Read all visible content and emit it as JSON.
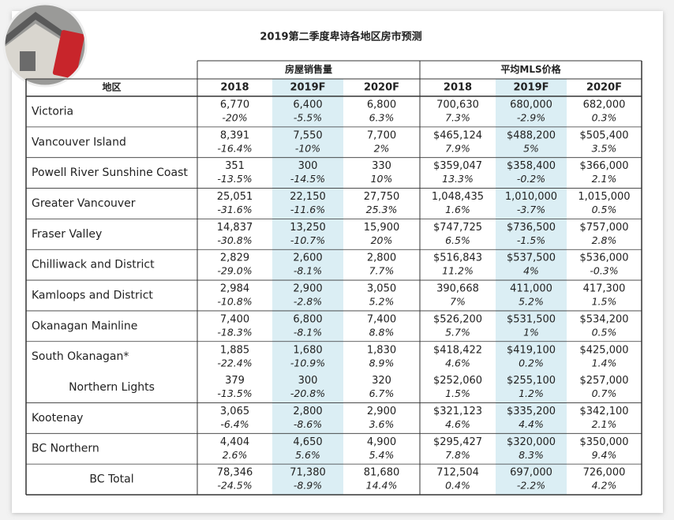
{
  "title": "2019第二季度卑诗各地区房市预测",
  "table": {
    "region_header": "地区",
    "groups": [
      "房屋销售量",
      "平均MLS价格"
    ],
    "years": [
      "2018",
      "2019F",
      "2020F",
      "2018",
      "2019F",
      "2020F"
    ],
    "rows": [
      {
        "region": "Victoria",
        "cells": [
          [
            "6,770",
            "-20%"
          ],
          [
            "6,400",
            "-5.5%"
          ],
          [
            "6,800",
            "6.3%"
          ],
          [
            "700,630",
            "7.3%"
          ],
          [
            "680,000",
            "-2.9%"
          ],
          [
            "682,000",
            "0.3%"
          ]
        ]
      },
      {
        "region": "Vancouver Island",
        "cells": [
          [
            "8,391",
            "-16.4%"
          ],
          [
            "7,550",
            "-10%"
          ],
          [
            "7,700",
            "2%"
          ],
          [
            "$465,124",
            "7.9%"
          ],
          [
            "$488,200",
            "5%"
          ],
          [
            "$505,400",
            "3.5%"
          ]
        ]
      },
      {
        "region": "Powell River Sunshine Coast",
        "cells": [
          [
            "351",
            "-13.5%"
          ],
          [
            "300",
            "-14.5%"
          ],
          [
            "330",
            "10%"
          ],
          [
            "$359,047",
            "13.3%"
          ],
          [
            "$358,400",
            "-0.2%"
          ],
          [
            "$366,000",
            "2.1%"
          ]
        ]
      },
      {
        "region": "Greater Vancouver",
        "cells": [
          [
            "25,051",
            "-31.6%"
          ],
          [
            "22,150",
            "-11.6%"
          ],
          [
            "27,750",
            "25.3%"
          ],
          [
            "1,048,435",
            "1.6%"
          ],
          [
            "1,010,000",
            "-3.7%"
          ],
          [
            "1,015,000",
            "0.5%"
          ]
        ]
      },
      {
        "region": "Fraser Valley",
        "cells": [
          [
            "14,837",
            "-30.8%"
          ],
          [
            "13,250",
            "-10.7%"
          ],
          [
            "15,900",
            "20%"
          ],
          [
            "$747,725",
            "6.5%"
          ],
          [
            "$736,500",
            "-1.5%"
          ],
          [
            "$757,000",
            "2.8%"
          ]
        ]
      },
      {
        "region": "Chilliwack and District",
        "cells": [
          [
            "2,829",
            "-29.0%"
          ],
          [
            "2,600",
            "-8.1%"
          ],
          [
            "2,800",
            "7.7%"
          ],
          [
            "$516,843",
            "11.2%"
          ],
          [
            "$537,500",
            "4%"
          ],
          [
            "$536,000",
            "-0.3%"
          ]
        ]
      },
      {
        "region": "Kamloops and District",
        "cells": [
          [
            "2,984",
            "-10.8%"
          ],
          [
            "2,900",
            "-2.8%"
          ],
          [
            "3,050",
            "5.2%"
          ],
          [
            "390,668",
            "7%"
          ],
          [
            "411,000",
            "5.2%"
          ],
          [
            "417,300",
            "1.5%"
          ]
        ]
      },
      {
        "region": "Okanagan Mainline",
        "cells": [
          [
            "7,400",
            "-18.3%"
          ],
          [
            "6,800",
            "-8.1%"
          ],
          [
            "7,400",
            "8.8%"
          ],
          [
            "$526,200",
            "5.7%"
          ],
          [
            "$531,500",
            "1%"
          ],
          [
            "$534,200",
            "0.5%"
          ]
        ]
      },
      {
        "region": "South Okanagan*",
        "cells": [
          [
            "1,885",
            "-22.4%"
          ],
          [
            "1,680",
            "-10.9%"
          ],
          [
            "1,830",
            "8.9%"
          ],
          [
            "$418,422",
            "4.6%"
          ],
          [
            "$419,100",
            "0.2%"
          ],
          [
            "$425,000",
            "1.4%"
          ]
        ]
      },
      {
        "region": "Northern Lights",
        "cells": [
          [
            "379",
            "-13.5%"
          ],
          [
            "300",
            "-20.8%"
          ],
          [
            "320",
            "6.7%"
          ],
          [
            "$252,060",
            "1.5%"
          ],
          [
            "$255,100",
            "1.2%"
          ],
          [
            "$257,000",
            "0.7%"
          ]
        ]
      },
      {
        "region": "Kootenay",
        "cells": [
          [
            "3,065",
            "-6.4%"
          ],
          [
            "2,800",
            "-8.6%"
          ],
          [
            "2,900",
            "3.6%"
          ],
          [
            "$321,123",
            "4.6%"
          ],
          [
            "$335,200",
            "4.4%"
          ],
          [
            "$342,100",
            "2.1%"
          ]
        ]
      },
      {
        "region": "BC Northern",
        "cells": [
          [
            "4,404",
            "2.6%"
          ],
          [
            "4,650",
            "5.6%"
          ],
          [
            "4,900",
            "5.4%"
          ],
          [
            "$295,427",
            "7.8%"
          ],
          [
            "$320,000",
            "8.3%"
          ],
          [
            "$350,000",
            "9.4%"
          ]
        ]
      },
      {
        "region": "BC Total",
        "cells": [
          [
            "78,346",
            "-24.5%"
          ],
          [
            "71,380",
            "-8.9%"
          ],
          [
            "81,680",
            "14.4%"
          ],
          [
            "712,504",
            "0.4%"
          ],
          [
            "697,000",
            "-2.2%"
          ],
          [
            "726,000",
            "4.2%"
          ]
        ]
      }
    ]
  }
}
